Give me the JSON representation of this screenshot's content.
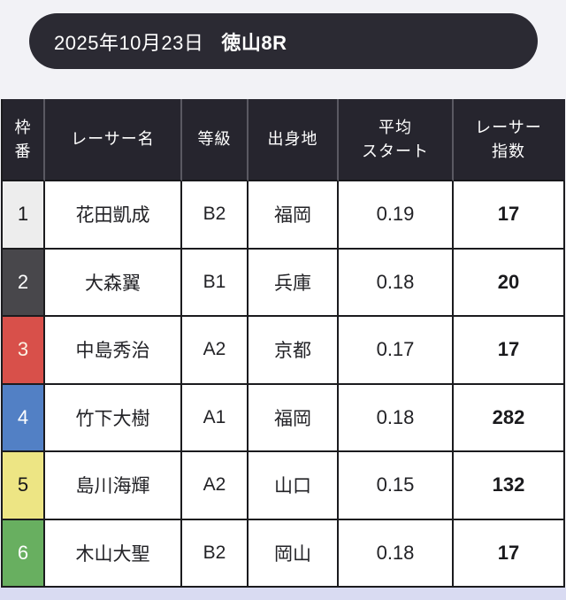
{
  "page": {
    "background": "#f2f2f6",
    "footer_strip_color": "#d9dbf2"
  },
  "banner": {
    "date": "2025年10月23日",
    "race": "徳山8R",
    "bg": "#2b2a33",
    "text_color": "#ffffff"
  },
  "table": {
    "header_bg": "#26252e",
    "columns": [
      {
        "id": "frame",
        "label": "枠\n番"
      },
      {
        "id": "racer_name",
        "label": "レーサー名"
      },
      {
        "id": "class",
        "label": "等級"
      },
      {
        "id": "origin",
        "label": "出身地"
      },
      {
        "id": "avg_start",
        "label": "平均\nスタート"
      },
      {
        "id": "racer_index",
        "label": "レーサー\n指数"
      }
    ],
    "rows": [
      {
        "frame": "1",
        "frame_bg": "#ededed",
        "frame_color": "#17171a",
        "name": "花田凱成",
        "class": "B2",
        "origin": "福岡",
        "avg_start": "0.19",
        "index": "17"
      },
      {
        "frame": "2",
        "frame_bg": "#48474b",
        "frame_color": "#ffffff",
        "name": "大森翼",
        "class": "B1",
        "origin": "兵庫",
        "avg_start": "0.18",
        "index": "20"
      },
      {
        "frame": "3",
        "frame_bg": "#d8504a",
        "frame_color": "#fbf3e4",
        "name": "中島秀治",
        "class": "A2",
        "origin": "京都",
        "avg_start": "0.17",
        "index": "17"
      },
      {
        "frame": "4",
        "frame_bg": "#5280c5",
        "frame_color": "#ffffff",
        "name": "竹下大樹",
        "class": "A1",
        "origin": "福岡",
        "avg_start": "0.18",
        "index": "282"
      },
      {
        "frame": "5",
        "frame_bg": "#ede584",
        "frame_color": "#17171a",
        "name": "島川海輝",
        "class": "A2",
        "origin": "山口",
        "avg_start": "0.15",
        "index": "132"
      },
      {
        "frame": "6",
        "frame_bg": "#68af60",
        "frame_color": "#ffffff",
        "name": "木山大聖",
        "class": "B2",
        "origin": "岡山",
        "avg_start": "0.18",
        "index": "17"
      }
    ]
  }
}
